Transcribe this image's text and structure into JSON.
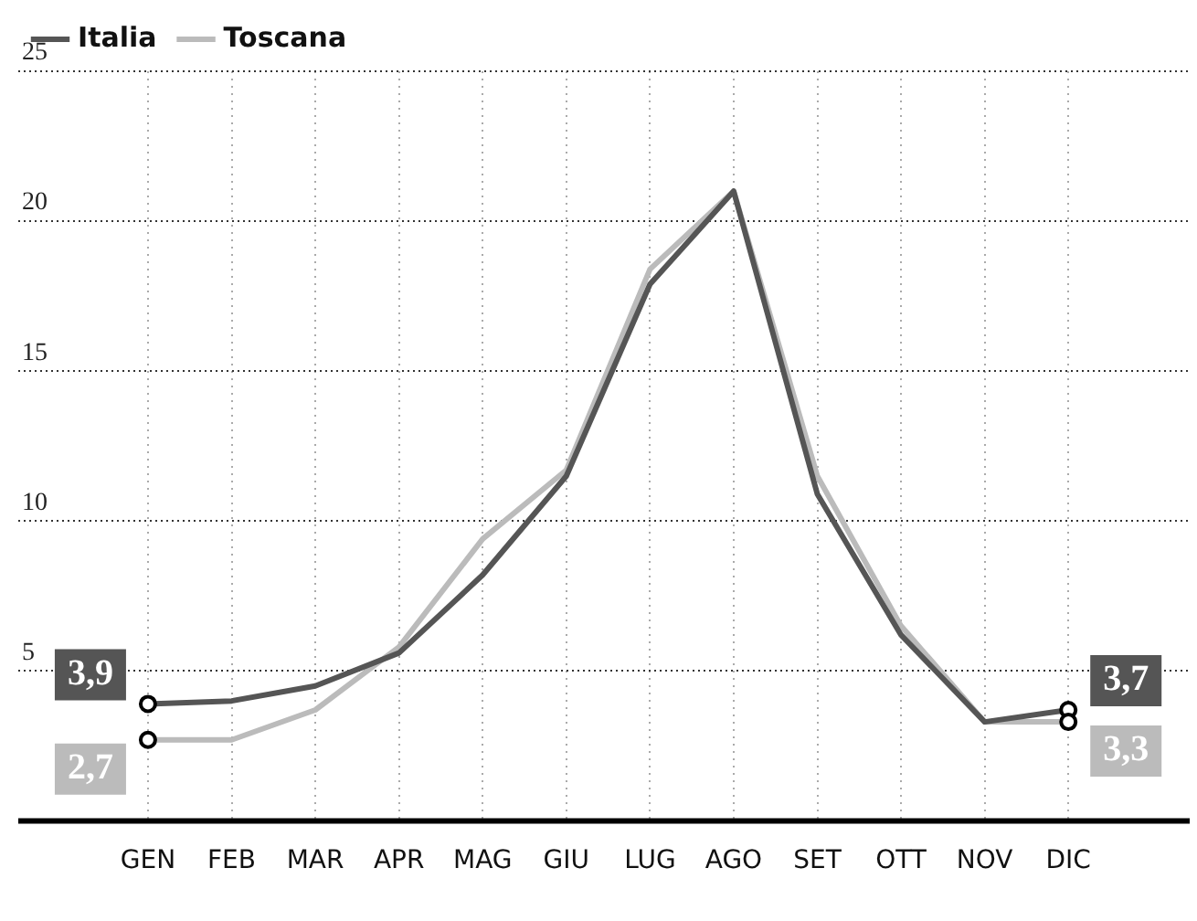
{
  "chart_data": {
    "type": "line",
    "categories": [
      "GEN",
      "FEB",
      "MAR",
      "APR",
      "MAG",
      "GIU",
      "LUG",
      "AGO",
      "SET",
      "OTT",
      "NOV",
      "DIC"
    ],
    "series": [
      {
        "name": "Italia",
        "color": "#555555",
        "values": [
          3.9,
          4.0,
          4.5,
          5.6,
          8.2,
          11.5,
          17.9,
          21.0,
          10.9,
          6.2,
          3.3,
          3.7
        ],
        "value_labels": [
          "3,9",
          null,
          null,
          null,
          null,
          null,
          null,
          null,
          null,
          null,
          null,
          "3,7"
        ]
      },
      {
        "name": "Toscana",
        "color": "#bbbbbb",
        "values": [
          2.7,
          2.7,
          3.7,
          5.8,
          9.4,
          11.7,
          18.4,
          21.0,
          11.5,
          6.5,
          3.3,
          3.3
        ],
        "value_labels": [
          "2,7",
          null,
          null,
          null,
          null,
          null,
          null,
          null,
          null,
          null,
          null,
          "3,3"
        ]
      }
    ],
    "ylim": [
      0,
      25
    ],
    "yticks": [
      5,
      10,
      15,
      20,
      25
    ],
    "grid": true,
    "legend": "top left",
    "line_style": "solid"
  }
}
